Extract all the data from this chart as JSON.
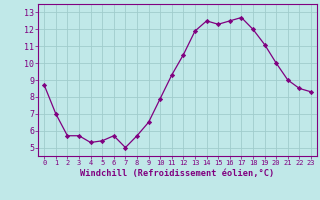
{
  "x": [
    0,
    1,
    2,
    3,
    4,
    5,
    6,
    7,
    8,
    9,
    10,
    11,
    12,
    13,
    14,
    15,
    16,
    17,
    18,
    19,
    20,
    21,
    22,
    23
  ],
  "y": [
    8.7,
    7.0,
    5.7,
    5.7,
    5.3,
    5.4,
    5.7,
    5.0,
    5.7,
    6.5,
    7.9,
    9.3,
    10.5,
    11.9,
    12.5,
    12.3,
    12.5,
    12.7,
    12.0,
    11.1,
    10.0,
    9.0,
    8.5,
    8.3
  ],
  "line_color": "#800080",
  "marker": "D",
  "marker_size": 2.2,
  "bg_color": "#c0e8e8",
  "grid_color": "#a0cccc",
  "xlabel": "Windchill (Refroidissement éolien,°C)",
  "ylim": [
    4.5,
    13.5
  ],
  "xlim": [
    -0.5,
    23.5
  ],
  "yticks": [
    5,
    6,
    7,
    8,
    9,
    10,
    11,
    12,
    13
  ],
  "xticks": [
    0,
    1,
    2,
    3,
    4,
    5,
    6,
    7,
    8,
    9,
    10,
    11,
    12,
    13,
    14,
    15,
    16,
    17,
    18,
    19,
    20,
    21,
    22,
    23
  ],
  "axis_color": "#800080",
  "tick_color": "#800080",
  "label_color": "#800080",
  "xtick_fontsize": 5.0,
  "ytick_fontsize": 6.0,
  "xlabel_fontsize": 6.2
}
